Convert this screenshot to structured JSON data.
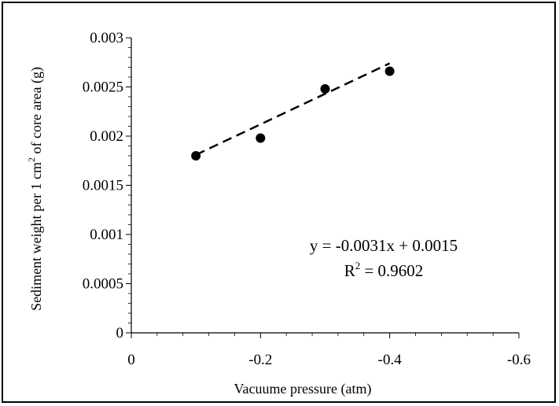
{
  "chart_data": {
    "type": "scatter",
    "xlabel": "Vacuume pressure (atm)",
    "ylabel": "Sediment weight per 1 cm² of core area (g)",
    "ylabel_parts": {
      "pre": "Sediment weight per 1 cm",
      "sup": "2",
      "post": " of core area (g)"
    },
    "xlim": [
      0,
      -0.6
    ],
    "ylim": [
      0,
      0.003
    ],
    "x_ticks": [
      "0",
      "-0.2",
      "-0.4",
      "-0.6"
    ],
    "y_ticks": [
      "0",
      "0.0005",
      "0.001",
      "0.0015",
      "0.002",
      "0.0025",
      "0.003"
    ],
    "grid": false,
    "points": [
      {
        "x": -0.1,
        "y": 0.0018
      },
      {
        "x": -0.2,
        "y": 0.00198
      },
      {
        "x": -0.3,
        "y": 0.00248
      },
      {
        "x": -0.4,
        "y": 0.00266
      }
    ],
    "trendline": {
      "style": "dashed",
      "slope": -0.0031,
      "intercept": 0.0015,
      "x_range": [
        -0.1,
        -0.4
      ]
    },
    "annotation": {
      "equation": "y = -0.0031x + 0.0015",
      "r2_label": "R",
      "r2_sup": "2",
      "r2_value": " = 0.9602"
    }
  }
}
